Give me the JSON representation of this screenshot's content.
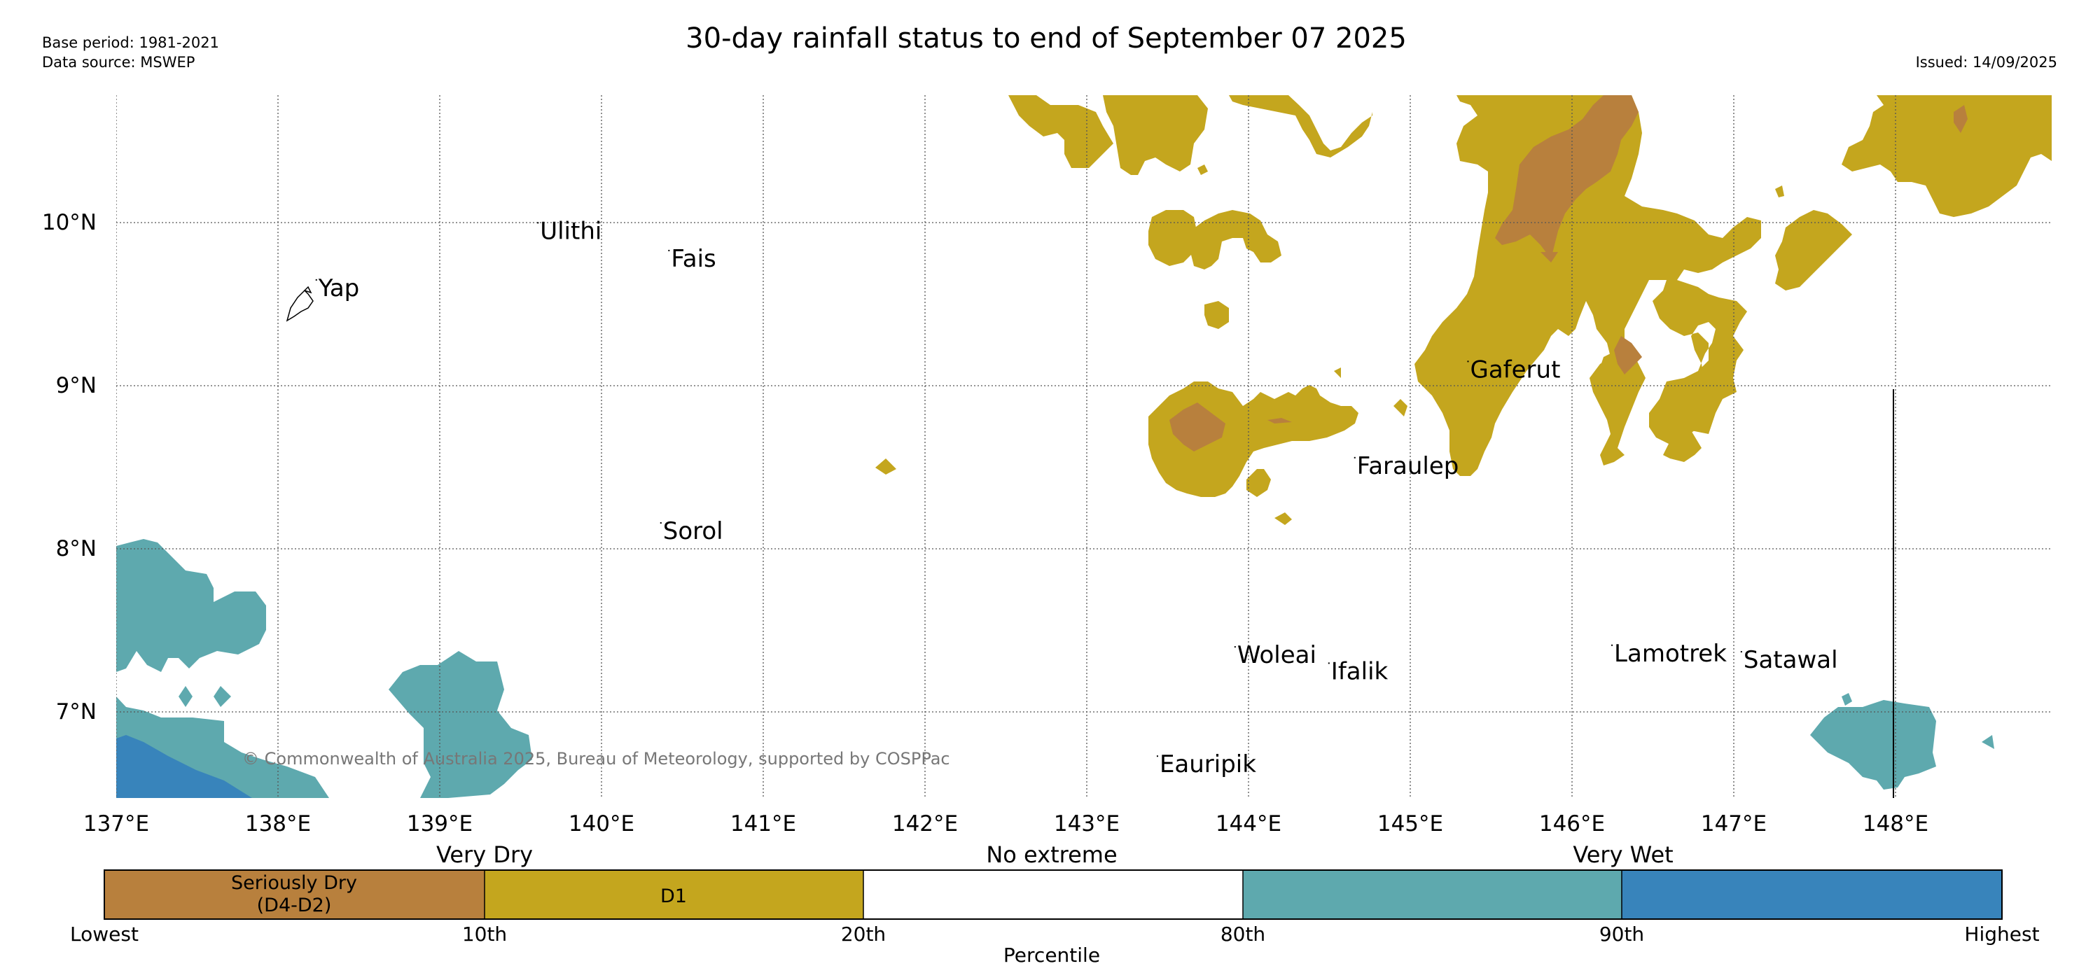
{
  "header": {
    "base_period": "Base period: 1981-2021",
    "data_source": "Data source: MSWEP",
    "title": "30-day rainfall status to end of September 07 2025",
    "issued": "Issued: 14/09/2025"
  },
  "map": {
    "lon_range": [
      137,
      148.8
    ],
    "lat_range": [
      6.5,
      10.8
    ],
    "lon_ticks": [
      "137°E",
      "138°E",
      "139°E",
      "140°E",
      "141°E",
      "142°E",
      "143°E",
      "144°E",
      "145°E",
      "146°E",
      "147°E",
      "148°E"
    ],
    "lat_ticks": [
      "7°N",
      "8°N",
      "9°N",
      "10°N"
    ],
    "copyright": "© Commonwealth of Australia 2025, Bureau of Meteorology, supported by COSPPac",
    "places": [
      {
        "name": "Yap",
        "lon": 138.25,
        "lat": 9.55
      },
      {
        "name": "Ulithi",
        "lon": 139.62,
        "lat": 9.9
      },
      {
        "name": "Fais",
        "lon": 140.43,
        "lat": 9.73
      },
      {
        "name": "Sorol",
        "lon": 140.38,
        "lat": 8.06
      },
      {
        "name": "Gaferut",
        "lon": 145.37,
        "lat": 9.05
      },
      {
        "name": "Faraulep",
        "lon": 144.67,
        "lat": 8.46
      },
      {
        "name": "Woleai",
        "lon": 143.93,
        "lat": 7.3
      },
      {
        "name": "Ifalik",
        "lon": 144.51,
        "lat": 7.2
      },
      {
        "name": "Lamotrek",
        "lon": 146.26,
        "lat": 7.31
      },
      {
        "name": "Satawal",
        "lon": 147.06,
        "lat": 7.27
      },
      {
        "name": "Eauripik",
        "lon": 143.45,
        "lat": 6.63
      }
    ],
    "colors": {
      "seriously_dry": "#b8803d",
      "d1": "#c4a61e",
      "no_extreme": "#ffffff",
      "very_wet": "#5ea9ae",
      "very_much_above": "#3884bb"
    }
  },
  "legend": {
    "group_labels": {
      "very_dry": "Very Dry",
      "no_extreme": "No extreme",
      "very_wet": "Very Wet"
    },
    "segment_labels": {
      "seriously_dry_1": "Seriously Dry",
      "seriously_dry_2": "(D4-D2)",
      "d1": "D1"
    },
    "tick_labels": [
      "Lowest",
      "10th",
      "20th",
      "80th",
      "90th",
      "Highest"
    ],
    "axis_label": "Percentile"
  }
}
